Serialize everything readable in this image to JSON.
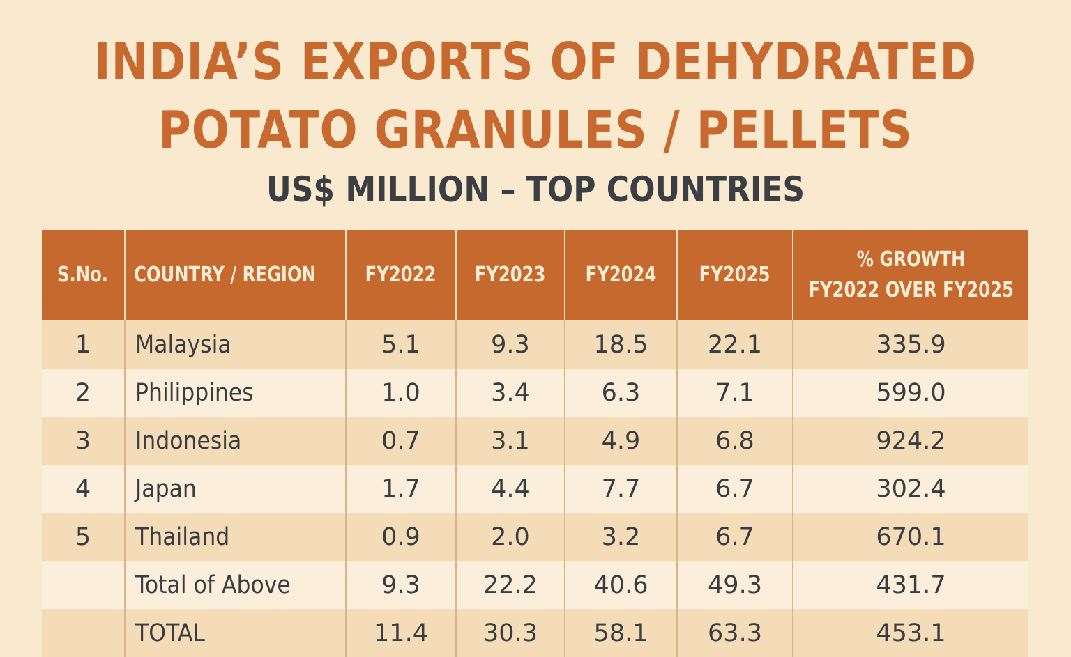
{
  "title": {
    "line1": "INDIA’S EXPORTS OF DEHYDRATED",
    "line2": "POTATO GRANULES / PELLETS"
  },
  "subtitle": "US$ MILLION – TOP COUNTRIES",
  "table": {
    "headers": [
      "S.No.",
      "COUNTRY / REGION",
      "FY2022",
      "FY2023",
      "FY2024",
      "FY2025",
      "% GROWTH",
      "FY2022 OVER FY2025"
    ],
    "rows": [
      {
        "sno": "1",
        "country": "Malaysia",
        "fy2022": "5.1",
        "fy2023": "9.3",
        "fy2024": "18.5",
        "fy2025": "22.1",
        "growth": "335.9"
      },
      {
        "sno": "2",
        "country": "Philippines",
        "fy2022": "1.0",
        "fy2023": "3.4",
        "fy2024": "6.3",
        "fy2025": "7.1",
        "growth": "599.0"
      },
      {
        "sno": "3",
        "country": "Indonesia",
        "fy2022": "0.7",
        "fy2023": "3.1",
        "fy2024": "4.9",
        "fy2025": "6.8",
        "growth": "924.2"
      },
      {
        "sno": "4",
        "country": "Japan",
        "fy2022": "1.7",
        "fy2023": "4.4",
        "fy2024": "7.7",
        "fy2025": "6.7",
        "growth": "302.4"
      },
      {
        "sno": "5",
        "country": "Thailand",
        "fy2022": "0.9",
        "fy2023": "2.0",
        "fy2024": "3.2",
        "fy2025": "6.7",
        "growth": "670.1"
      },
      {
        "sno": "",
        "country": "Total of Above",
        "fy2022": "9.3",
        "fy2023": "22.2",
        "fy2024": "40.6",
        "fy2025": "49.3",
        "growth": "431.7"
      },
      {
        "sno": "",
        "country": "TOTAL",
        "fy2022": "11.4",
        "fy2023": "30.3",
        "fy2024": "58.1",
        "fy2025": "63.3",
        "growth": "453.1"
      }
    ]
  },
  "colors": {
    "background": "#f8e9cf",
    "accent": "#c86a2f",
    "header_text": "#fbecd6",
    "row_dark": "#f5dcb8",
    "row_light": "#fbeedb",
    "body_text": "#3a3d40"
  }
}
